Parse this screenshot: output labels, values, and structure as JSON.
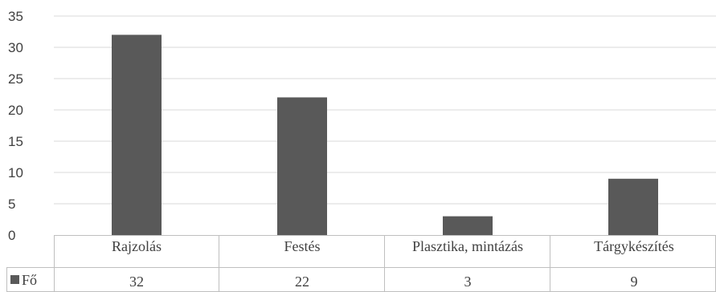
{
  "chart_data": {
    "type": "bar",
    "categories": [
      "Rajzolás",
      "Festés",
      "Plasztika, mintázás",
      "Tárgykészítés"
    ],
    "series": [
      {
        "name": "Fő",
        "values": [
          32,
          22,
          3,
          9
        ],
        "color": "#595959"
      }
    ],
    "ylim": [
      0,
      35
    ],
    "yticks": [
      "0",
      "5",
      "10",
      "15",
      "20",
      "25",
      "30",
      "35"
    ],
    "grid": true,
    "legend": "data-table-left",
    "data_table": {
      "row_label": "Fő",
      "cells": [
        "32",
        "22",
        "3",
        "9"
      ]
    }
  },
  "colors": {
    "bar": "#595959",
    "grid": "#d9d9d9",
    "table_border": "#bfbfbf",
    "text": "#404040"
  }
}
